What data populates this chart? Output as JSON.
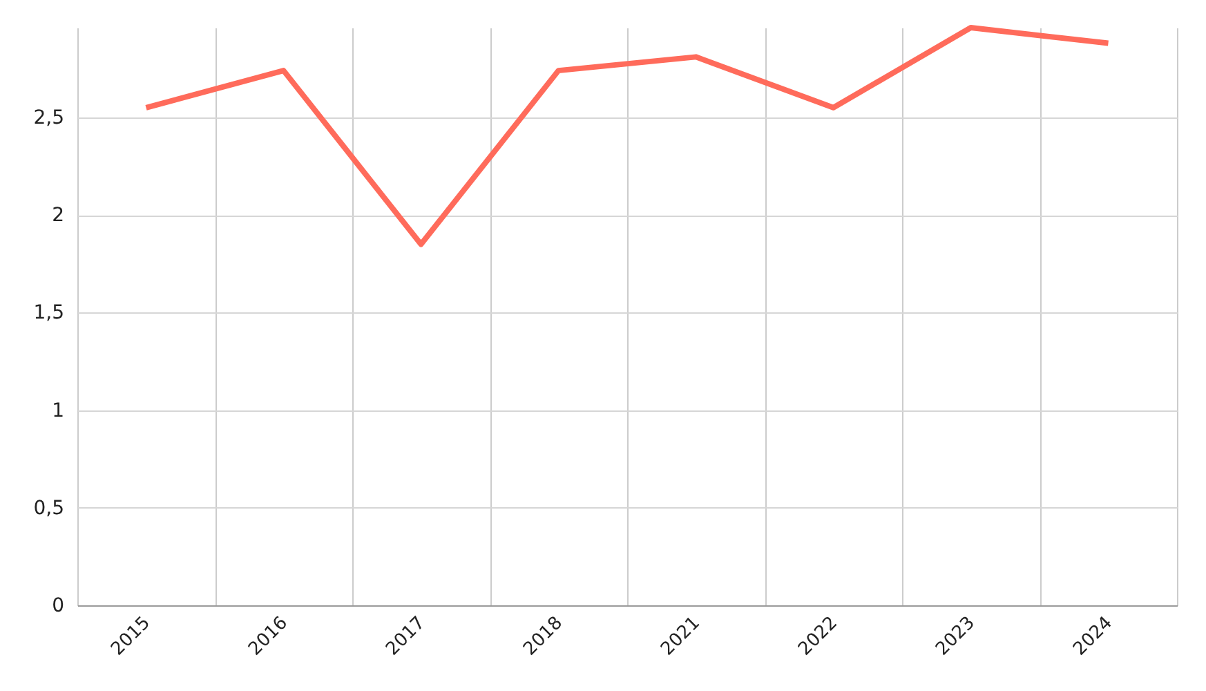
{
  "chart_data": {
    "type": "line",
    "categories": [
      "2015",
      "2016",
      "2017",
      "2018",
      "2021",
      "2022",
      "2023",
      "2024"
    ],
    "values": [
      2.55,
      2.74,
      1.85,
      2.74,
      2.81,
      2.55,
      2.96,
      2.88
    ],
    "color": "#ff6b5b",
    "ylim": [
      0,
      2.96
    ],
    "yticks": [
      0,
      {
        "value": 0.5,
        "label": "0,5"
      },
      1,
      {
        "value": 1.5,
        "label": "1,5"
      },
      2,
      {
        "value": 2.5,
        "label": "2,5"
      }
    ],
    "grid": true
  }
}
